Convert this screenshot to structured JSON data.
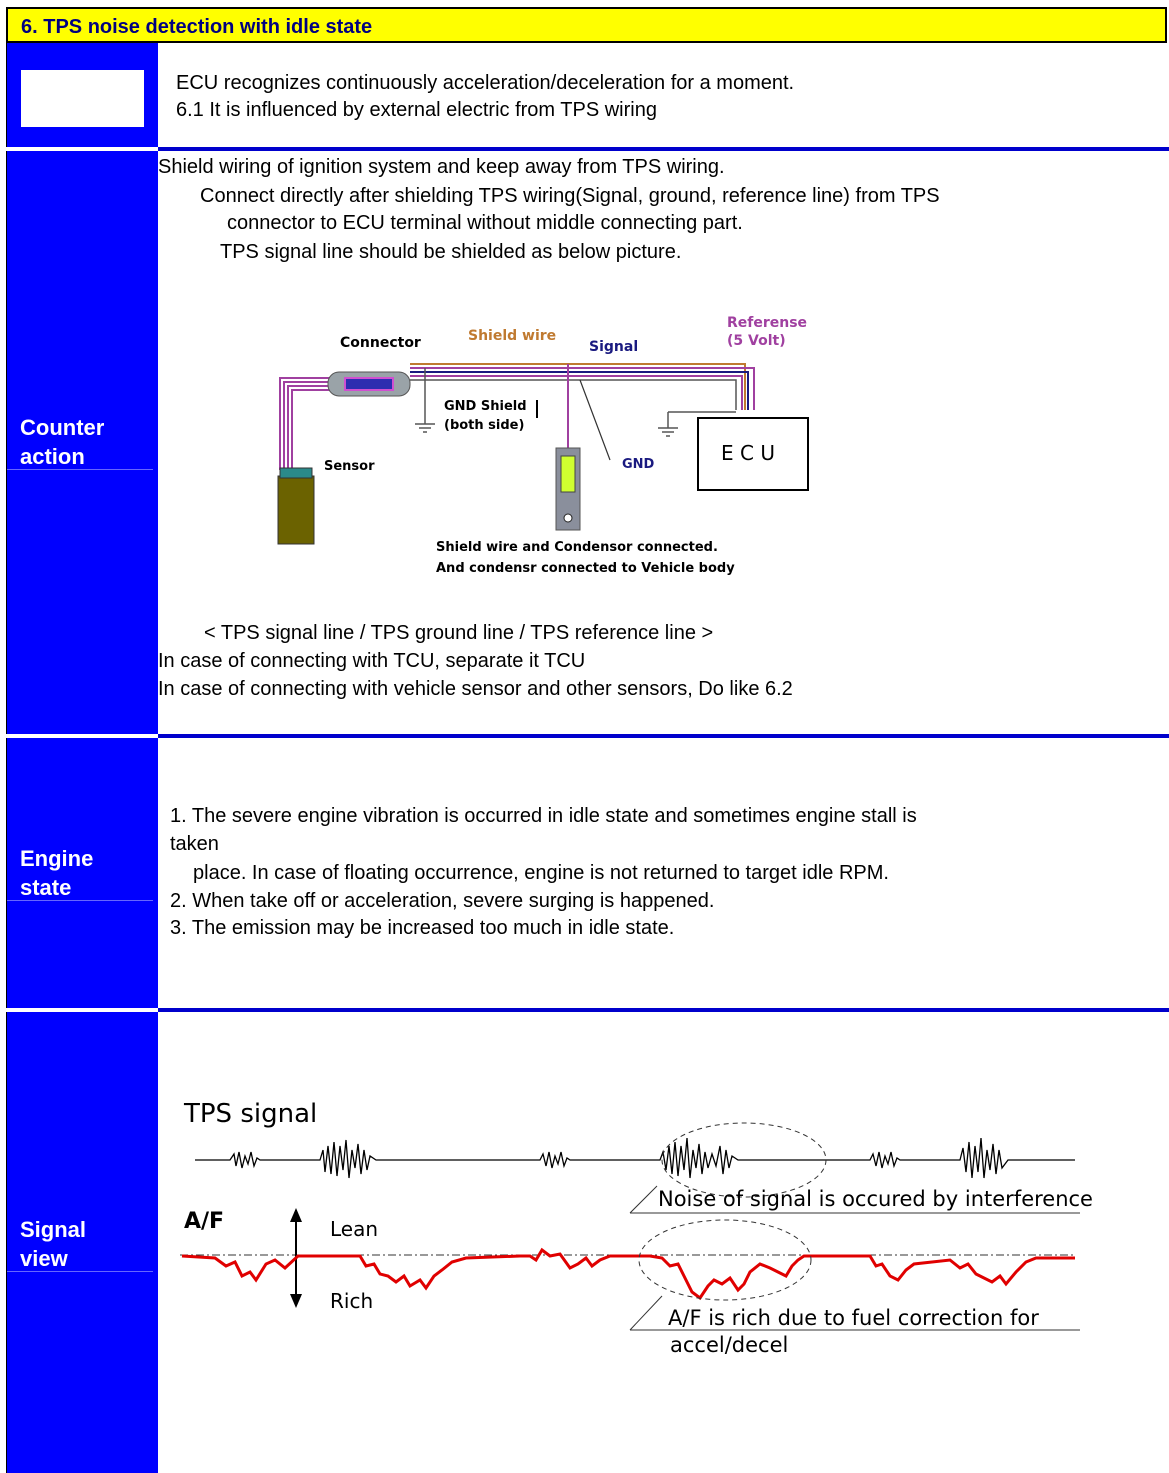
{
  "header": {
    "title": "6. TPS noise detection with idle state"
  },
  "intro": {
    "line1": "ECU recognizes continuously acceleration/deceleration for a moment.",
    "line2": "6.1 It is influenced by external electric from TPS wiring"
  },
  "counter_action": {
    "label_line1": "Counter",
    "label_line2": "action",
    "p1": "Shield wiring of ignition system and keep away from TPS wiring.",
    "p2a": "Connect directly after shielding TPS wiring(Signal, ground, reference line) from TPS",
    "p2b": "connector to ECU terminal without middle connecting part.",
    "p3": "TPS signal line should be shielded as below picture.",
    "caption": "< TPS signal line / TPS ground line / TPS reference line >",
    "p4": "In case of connecting with TCU, separate it TCU",
    "p5": "In case of connecting with vehicle sensor and other sensors, Do like 6.2",
    "diagram": {
      "connector": "Connector",
      "shield_wire": "Shield wire",
      "signal": "Signal",
      "reference_line1": "Referense",
      "reference_line2": "(5 Volt)",
      "gnd_shield_line1": "GND Shield",
      "gnd_shield_line2": "(both side)",
      "gnd": "GND",
      "sensor": "Sensor",
      "ecu": "E C U",
      "note_line1": "Shield wire and Condensor connected.",
      "note_line2": "And condensr connected to Vehicle body",
      "colors": {
        "wire": "#a040a0",
        "shield": "#c07a30",
        "signal": "#1a1a80",
        "sensor": "#6b6200"
      }
    }
  },
  "engine_state": {
    "label_line1": "Engine",
    "label_line2": "state",
    "l1a": "1.  The severe engine vibration is occurred in idle state and sometimes engine stall is",
    "l1b": "taken",
    "l1c": "place. In case of floating occurrence, engine is not returned to target idle RPM.",
    "l2": "2. When take off or acceleration, severe surging is happened.",
    "l3": "3. The emission may be increased too much in idle state."
  },
  "signal_view": {
    "label_line1": "Signal",
    "label_line2": "view",
    "tps_title": "TPS signal",
    "af_title": "A/F",
    "lean": "Lean",
    "rich": "Rich",
    "noise_note": "Noise of signal is occured by interference",
    "af_note_line1": "A/F is rich due to fuel correction for",
    "af_note_line2": "accel/decel",
    "colors": {
      "af_line": "#e00000",
      "tps_line": "#000000"
    }
  }
}
